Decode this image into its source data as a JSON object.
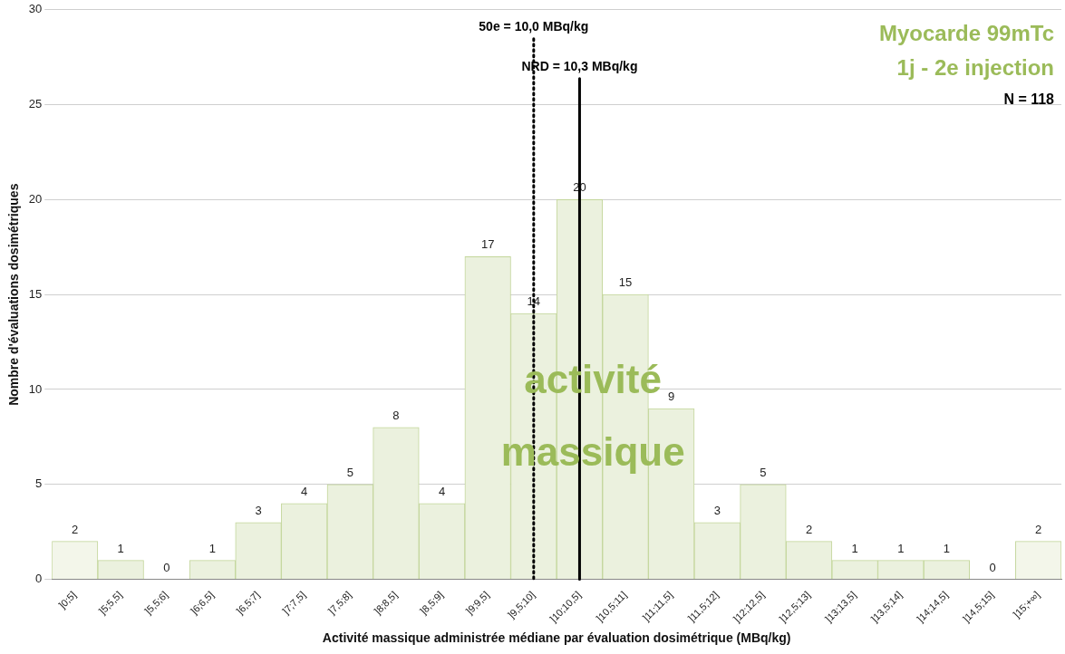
{
  "chart_data": {
    "type": "bar",
    "xlabel": "Activité massique administrée médiane par évaluation dosimétrique (MBq/kg)",
    "ylabel": "Nombre d'évaluations dosimétriques",
    "categories": [
      "]0;5]",
      "]5;5,5]",
      "]5,5;6]",
      "]6;6,5]",
      "]6,5;7]",
      "]7;7,5]",
      "]7,5;8]",
      "]8;8,5]",
      "]8,5;9]",
      "]9;9,5]",
      "]9,5;10]",
      "]10;10,5]",
      "]10,5;11]",
      "]11;11,5]",
      "]11,5;12]",
      "]12;12,5]",
      "]12,5;13]",
      "]13;13,5]",
      "]13,5;14]",
      "]14;14,5]",
      "]14,5;15]",
      "]15;+∞]"
    ],
    "values": [
      2,
      1,
      0,
      1,
      3,
      4,
      5,
      8,
      4,
      17,
      14,
      20,
      15,
      9,
      3,
      5,
      2,
      1,
      1,
      1,
      0,
      2
    ],
    "colors": [
      "#f3f6ea",
      "#ebf1de",
      "#ebf1de",
      "#ebf1de",
      "#ebf1de",
      "#ebf1de",
      "#ebf1de",
      "#ebf1de",
      "#ebf1de",
      "#ebf1de",
      "#ebf1de",
      "#ebf1de",
      "#ebf1de",
      "#ebf1de",
      "#ebf1de",
      "#ebf1de",
      "#ebf1de",
      "#ebf1de",
      "#ebf1de",
      "#ebf1de",
      "#ebf1de",
      "#f3f6ea"
    ],
    "ylim": [
      0,
      30
    ],
    "yticks": [
      0,
      5,
      10,
      15,
      20,
      25,
      30
    ],
    "grid": "y",
    "data_labels": true,
    "ref_lines": [
      {
        "axis": "x",
        "value": "]9,5;10]",
        "label": "50e = 10,0 MBq/kg",
        "line_style": "dotted",
        "color": "#000000"
      },
      {
        "axis": "x",
        "value": "]10;10,5]",
        "label": "NRD = 10,3 MBq/kg",
        "line_style": "solid",
        "color": "#000000"
      }
    ],
    "annotations": [
      "Myocarde 99mTc",
      "1j - 2e injection",
      "N = 118",
      "activité massique"
    ]
  }
}
